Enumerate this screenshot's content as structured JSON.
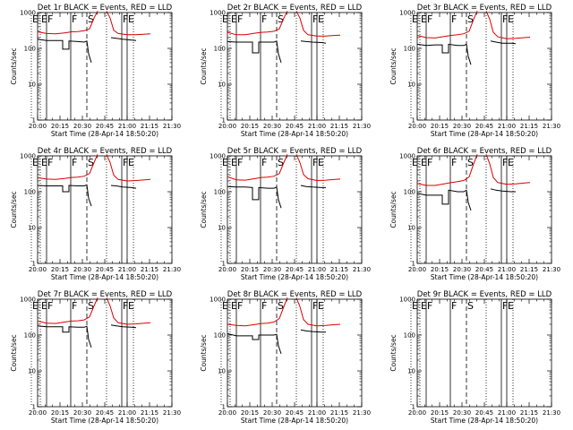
{
  "figure": {
    "start_time_label": "Start Time (28-Apr-14 18:50:20)",
    "ylabel": "Counts/sec"
  },
  "chart_data": {
    "type": "line",
    "xlim_hours": [
      20.0,
      21.5
    ],
    "x_tick_labels": [
      "20:00",
      "20:15",
      "20:30",
      "20:45",
      "21:00",
      "21:15",
      "21:30"
    ],
    "ylim": [
      1,
      1000
    ],
    "ylog": true,
    "y_tick_labels": [
      "1",
      "10",
      "100",
      "1000"
    ],
    "series_colors": {
      "events": "#000000",
      "lld": "#dd0000"
    },
    "markers": [
      {
        "label": "E",
        "x": 19.93,
        "line": "dotted"
      },
      {
        "label": "E",
        "x": 20.03,
        "line": "dotted"
      },
      {
        "label": "F",
        "x": 20.1,
        "line": "solid"
      },
      {
        "label": "F",
        "x": 20.37,
        "line": "solid"
      },
      {
        "label": "S",
        "x": 20.55,
        "line": "dashed"
      },
      {
        "label": "",
        "x": 20.77,
        "line": "dotted"
      },
      {
        "label": "F",
        "x": 20.94,
        "line": "solid"
      },
      {
        "label": "E",
        "x": 21.0,
        "line": "solid"
      },
      {
        "label": "",
        "x": 21.07,
        "line": "dotted"
      }
    ],
    "panels": [
      {
        "title": "Det 1r BLACK = Events, RED = LLD",
        "events": [
          [
            20.0,
            180
          ],
          [
            20.1,
            165
          ],
          [
            20.2,
            165
          ],
          [
            20.28,
            165
          ],
          [
            20.28,
            95
          ],
          [
            20.35,
            95
          ],
          [
            20.35,
            160
          ],
          [
            20.45,
            155
          ],
          [
            20.52,
            150
          ],
          [
            20.55,
            160
          ],
          [
            20.57,
            70
          ],
          [
            20.6,
            40
          ]
        ],
        "events2": [
          [
            20.82,
            200
          ],
          [
            20.88,
            190
          ],
          [
            20.95,
            180
          ],
          [
            21.05,
            170
          ],
          [
            21.1,
            165
          ]
        ],
        "lld": [
          [
            20.0,
            290
          ],
          [
            20.1,
            260
          ],
          [
            20.2,
            255
          ],
          [
            20.3,
            270
          ],
          [
            20.38,
            290
          ],
          [
            20.45,
            295
          ],
          [
            20.52,
            310
          ],
          [
            20.58,
            350
          ],
          [
            20.63,
            700
          ],
          [
            20.67,
            1100
          ]
        ],
        "lld2": [
          [
            20.77,
            1100
          ],
          [
            20.81,
            700
          ],
          [
            20.85,
            320
          ],
          [
            20.9,
            260
          ],
          [
            21.0,
            240
          ],
          [
            21.1,
            240
          ],
          [
            21.2,
            250
          ],
          [
            21.26,
            255
          ]
        ]
      },
      {
        "title": "Det 2r BLACK = Events, RED = LLD",
        "events": [
          [
            20.0,
            155
          ],
          [
            20.1,
            150
          ],
          [
            20.2,
            150
          ],
          [
            20.28,
            150
          ],
          [
            20.28,
            75
          ],
          [
            20.35,
            75
          ],
          [
            20.35,
            150
          ],
          [
            20.45,
            150
          ],
          [
            20.52,
            150
          ],
          [
            20.55,
            160
          ],
          [
            20.57,
            70
          ],
          [
            20.6,
            40
          ]
        ],
        "events2": [
          [
            20.82,
            160
          ],
          [
            20.88,
            155
          ],
          [
            20.95,
            150
          ],
          [
            21.05,
            145
          ],
          [
            21.1,
            140
          ]
        ],
        "lld": [
          [
            20.0,
            280
          ],
          [
            20.1,
            240
          ],
          [
            20.2,
            240
          ],
          [
            20.3,
            265
          ],
          [
            20.38,
            280
          ],
          [
            20.45,
            285
          ],
          [
            20.52,
            300
          ],
          [
            20.58,
            350
          ],
          [
            20.63,
            700
          ],
          [
            20.67,
            1100
          ]
        ],
        "lld2": [
          [
            20.77,
            1100
          ],
          [
            20.81,
            700
          ],
          [
            20.85,
            320
          ],
          [
            20.9,
            240
          ],
          [
            21.0,
            220
          ],
          [
            21.1,
            220
          ],
          [
            21.2,
            230
          ],
          [
            21.26,
            235
          ]
        ]
      },
      {
        "title": "Det 3r BLACK = Events, RED = LLD",
        "events": [
          [
            20.0,
            130
          ],
          [
            20.1,
            120
          ],
          [
            20.2,
            125
          ],
          [
            20.28,
            125
          ],
          [
            20.28,
            75
          ],
          [
            20.35,
            75
          ],
          [
            20.35,
            130
          ],
          [
            20.45,
            120
          ],
          [
            20.52,
            120
          ],
          [
            20.55,
            130
          ],
          [
            20.57,
            60
          ],
          [
            20.6,
            35
          ]
        ],
        "events2": [
          [
            20.82,
            160
          ],
          [
            20.88,
            150
          ],
          [
            20.95,
            140
          ],
          [
            21.05,
            140
          ],
          [
            21.1,
            135
          ]
        ],
        "lld": [
          [
            20.0,
            230
          ],
          [
            20.1,
            200
          ],
          [
            20.2,
            195
          ],
          [
            20.3,
            215
          ],
          [
            20.38,
            230
          ],
          [
            20.45,
            240
          ],
          [
            20.52,
            255
          ],
          [
            20.58,
            300
          ],
          [
            20.63,
            650
          ],
          [
            20.67,
            1100
          ]
        ],
        "lld2": [
          [
            20.77,
            1100
          ],
          [
            20.81,
            650
          ],
          [
            20.85,
            280
          ],
          [
            20.9,
            210
          ],
          [
            21.0,
            185
          ],
          [
            21.1,
            190
          ],
          [
            21.2,
            200
          ],
          [
            21.26,
            205
          ]
        ]
      },
      {
        "title": "Det 4r BLACK = Events, RED = LLD",
        "events": [
          [
            20.0,
            150
          ],
          [
            20.1,
            145
          ],
          [
            20.2,
            145
          ],
          [
            20.28,
            145
          ],
          [
            20.28,
            100
          ],
          [
            20.35,
            100
          ],
          [
            20.35,
            150
          ],
          [
            20.45,
            145
          ],
          [
            20.52,
            145
          ],
          [
            20.55,
            155
          ],
          [
            20.57,
            65
          ],
          [
            20.6,
            40
          ]
        ],
        "events2": [
          [
            20.82,
            150
          ],
          [
            20.88,
            145
          ],
          [
            20.95,
            135
          ],
          [
            21.05,
            130
          ],
          [
            21.1,
            125
          ]
        ],
        "lld": [
          [
            20.0,
            245
          ],
          [
            20.1,
            225
          ],
          [
            20.2,
            220
          ],
          [
            20.3,
            235
          ],
          [
            20.38,
            250
          ],
          [
            20.45,
            255
          ],
          [
            20.52,
            270
          ],
          [
            20.58,
            320
          ],
          [
            20.63,
            650
          ],
          [
            20.67,
            1100
          ]
        ],
        "lld2": [
          [
            20.77,
            1100
          ],
          [
            20.81,
            650
          ],
          [
            20.85,
            290
          ],
          [
            20.9,
            220
          ],
          [
            21.0,
            200
          ],
          [
            21.1,
            205
          ],
          [
            21.2,
            215
          ],
          [
            21.26,
            220
          ]
        ]
      },
      {
        "title": "Det 5r BLACK = Events, RED = LLD",
        "events": [
          [
            20.0,
            140
          ],
          [
            20.1,
            135
          ],
          [
            20.2,
            135
          ],
          [
            20.28,
            130
          ],
          [
            20.28,
            60
          ],
          [
            20.35,
            60
          ],
          [
            20.35,
            130
          ],
          [
            20.45,
            125
          ],
          [
            20.52,
            125
          ],
          [
            20.55,
            135
          ],
          [
            20.57,
            60
          ],
          [
            20.6,
            35
          ]
        ],
        "events2": [
          [
            20.82,
            150
          ],
          [
            20.88,
            140
          ],
          [
            20.95,
            135
          ],
          [
            21.05,
            130
          ],
          [
            21.1,
            130
          ]
        ],
        "lld": [
          [
            20.0,
            260
          ],
          [
            20.1,
            215
          ],
          [
            20.2,
            210
          ],
          [
            20.3,
            230
          ],
          [
            20.38,
            250
          ],
          [
            20.45,
            255
          ],
          [
            20.52,
            270
          ],
          [
            20.58,
            320
          ],
          [
            20.63,
            650
          ],
          [
            20.67,
            1100
          ]
        ],
        "lld2": [
          [
            20.77,
            1100
          ],
          [
            20.81,
            650
          ],
          [
            20.85,
            300
          ],
          [
            20.9,
            230
          ],
          [
            21.0,
            205
          ],
          [
            21.1,
            210
          ],
          [
            21.2,
            220
          ],
          [
            21.26,
            225
          ]
        ]
      },
      {
        "title": "Det 6r BLACK = Events, RED = LLD",
        "events": [
          [
            20.0,
            90
          ],
          [
            20.1,
            80
          ],
          [
            20.2,
            80
          ],
          [
            20.28,
            80
          ],
          [
            20.28,
            45
          ],
          [
            20.35,
            45
          ],
          [
            20.35,
            110
          ],
          [
            20.45,
            100
          ],
          [
            20.52,
            100
          ],
          [
            20.55,
            110
          ],
          [
            20.57,
            50
          ],
          [
            20.6,
            30
          ]
        ],
        "events2": [
          [
            20.82,
            120
          ],
          [
            20.88,
            110
          ],
          [
            20.95,
            105
          ],
          [
            21.05,
            100
          ],
          [
            21.1,
            100
          ]
        ],
        "lld": [
          [
            20.0,
            170
          ],
          [
            20.1,
            150
          ],
          [
            20.2,
            150
          ],
          [
            20.3,
            165
          ],
          [
            20.38,
            180
          ],
          [
            20.45,
            190
          ],
          [
            20.52,
            205
          ],
          [
            20.58,
            260
          ],
          [
            20.63,
            600
          ],
          [
            20.67,
            1100
          ]
        ],
        "lld2": [
          [
            20.77,
            1100
          ],
          [
            20.81,
            600
          ],
          [
            20.85,
            250
          ],
          [
            20.9,
            180
          ],
          [
            21.0,
            160
          ],
          [
            21.1,
            165
          ],
          [
            21.2,
            175
          ],
          [
            21.26,
            180
          ]
        ]
      },
      {
        "title": "Det 7r BLACK = Events, RED = LLD",
        "events": [
          [
            20.0,
            180
          ],
          [
            20.1,
            170
          ],
          [
            20.2,
            170
          ],
          [
            20.28,
            170
          ],
          [
            20.28,
            120
          ],
          [
            20.35,
            120
          ],
          [
            20.35,
            170
          ],
          [
            20.45,
            165
          ],
          [
            20.52,
            165
          ],
          [
            20.55,
            175
          ],
          [
            20.57,
            75
          ],
          [
            20.6,
            45
          ]
        ],
        "events2": [
          [
            20.82,
            190
          ],
          [
            20.88,
            180
          ],
          [
            20.95,
            170
          ],
          [
            21.05,
            165
          ],
          [
            21.1,
            160
          ]
        ],
        "lld": [
          [
            20.0,
            245
          ],
          [
            20.1,
            215
          ],
          [
            20.2,
            210
          ],
          [
            20.3,
            230
          ],
          [
            20.38,
            245
          ],
          [
            20.45,
            250
          ],
          [
            20.52,
            265
          ],
          [
            20.58,
            320
          ],
          [
            20.63,
            650
          ],
          [
            20.67,
            1100
          ]
        ],
        "lld2": [
          [
            20.77,
            1100
          ],
          [
            20.81,
            650
          ],
          [
            20.85,
            300
          ],
          [
            20.9,
            220
          ],
          [
            21.0,
            200
          ],
          [
            21.1,
            205
          ],
          [
            21.2,
            215
          ],
          [
            21.26,
            220
          ]
        ]
      },
      {
        "title": "Det 8r BLACK = Events, RED = LLD",
        "events": [
          [
            20.0,
            110
          ],
          [
            20.1,
            95
          ],
          [
            20.2,
            95
          ],
          [
            20.28,
            95
          ],
          [
            20.28,
            75
          ],
          [
            20.35,
            75
          ],
          [
            20.35,
            100
          ],
          [
            20.45,
            100
          ],
          [
            20.52,
            100
          ],
          [
            20.55,
            105
          ],
          [
            20.57,
            50
          ],
          [
            20.6,
            30
          ]
        ],
        "events2": [
          [
            20.82,
            140
          ],
          [
            20.88,
            130
          ],
          [
            20.95,
            125
          ],
          [
            21.05,
            120
          ],
          [
            21.1,
            120
          ]
        ],
        "lld": [
          [
            20.0,
            200
          ],
          [
            20.1,
            185
          ],
          [
            20.2,
            180
          ],
          [
            20.3,
            195
          ],
          [
            20.38,
            210
          ],
          [
            20.45,
            215
          ],
          [
            20.52,
            230
          ],
          [
            20.58,
            290
          ],
          [
            20.63,
            620
          ],
          [
            20.67,
            1100
          ]
        ],
        "lld2": [
          [
            20.77,
            1100
          ],
          [
            20.81,
            620
          ],
          [
            20.85,
            270
          ],
          [
            20.9,
            200
          ],
          [
            21.0,
            180
          ],
          [
            21.1,
            185
          ],
          [
            21.2,
            195
          ],
          [
            21.26,
            200
          ]
        ]
      },
      {
        "title": "Det 9r BLACK = Events, RED = LLD",
        "events": [],
        "events2": [],
        "lld": [],
        "lld2": []
      }
    ]
  }
}
